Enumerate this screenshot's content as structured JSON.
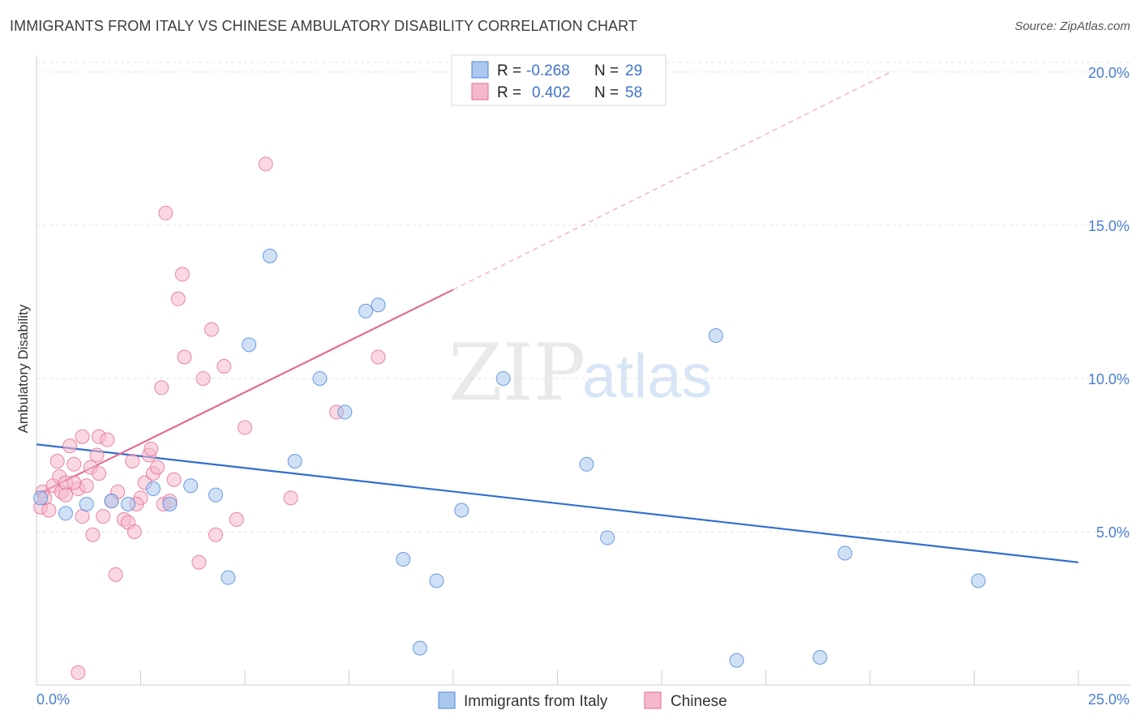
{
  "header": {
    "title": "IMMIGRANTS FROM ITALY VS CHINESE AMBULATORY DISABILITY CORRELATION CHART",
    "source": "Source: ZipAtlas.com"
  },
  "watermark": {
    "zip": "ZIP",
    "atlas": "atlas"
  },
  "legend_box": {
    "rows": [
      {
        "r_label": "R =",
        "r_value": "-0.268",
        "n_label": "N =",
        "n_value": "29",
        "color": "#aac8ee"
      },
      {
        "r_label": "R =",
        "r_value": "0.402",
        "n_label": "N =",
        "n_value": "58",
        "color": "#f5b8cb"
      }
    ]
  },
  "bottom_legend": {
    "items": [
      {
        "label": "Immigrants from Italy",
        "color": "#aac8ee"
      },
      {
        "label": "Chinese",
        "color": "#f5b8cb"
      }
    ]
  },
  "chart_data": {
    "type": "scatter",
    "title": "IMMIGRANTS FROM ITALY VS CHINESE AMBULATORY DISABILITY CORRELATION CHART",
    "xlabel": "",
    "ylabel": "Ambulatory Disability",
    "xlim": [
      0,
      25
    ],
    "ylim": [
      0,
      20.5
    ],
    "x_tick_labels": [
      "0.0%",
      "25.0%"
    ],
    "y_ticks": [
      5,
      10,
      15,
      20
    ],
    "y_tick_labels": [
      "5.0%",
      "10.0%",
      "15.0%",
      "20.0%"
    ],
    "grid": true,
    "legend_position": "top-center",
    "series": [
      {
        "name": "Immigrants from Italy",
        "color": "#4a86d8",
        "fill": "#aac8ee",
        "points": [
          [
            0.1,
            6.1
          ],
          [
            0.7,
            5.6
          ],
          [
            1.2,
            5.9
          ],
          [
            1.8,
            6.0
          ],
          [
            2.2,
            5.9
          ],
          [
            2.8,
            6.4
          ],
          [
            3.2,
            5.9
          ],
          [
            3.7,
            6.5
          ],
          [
            4.3,
            6.2
          ],
          [
            4.6,
            3.5
          ],
          [
            5.1,
            11.1
          ],
          [
            5.6,
            14.0
          ],
          [
            6.2,
            7.3
          ],
          [
            6.8,
            10.0
          ],
          [
            7.4,
            8.9
          ],
          [
            7.9,
            12.2
          ],
          [
            8.2,
            12.4
          ],
          [
            8.8,
            4.1
          ],
          [
            9.2,
            1.2
          ],
          [
            9.6,
            3.4
          ],
          [
            10.2,
            5.7
          ],
          [
            11.2,
            10.0
          ],
          [
            13.2,
            7.2
          ],
          [
            13.7,
            4.8
          ],
          [
            16.3,
            11.4
          ],
          [
            16.8,
            0.8
          ],
          [
            18.8,
            0.9
          ],
          [
            19.4,
            4.3
          ],
          [
            22.6,
            3.4
          ]
        ],
        "trend": {
          "x_start": 0,
          "y_start": 7.85,
          "x_end": 25,
          "y_end": 4.0
        }
      },
      {
        "name": "Chinese",
        "color": "#e36a95",
        "fill": "#f5b8cb",
        "points": [
          [
            0.1,
            5.8
          ],
          [
            0.15,
            6.3
          ],
          [
            0.2,
            6.1
          ],
          [
            0.3,
            5.7
          ],
          [
            0.4,
            6.5
          ],
          [
            0.5,
            7.3
          ],
          [
            0.55,
            6.8
          ],
          [
            0.6,
            6.3
          ],
          [
            0.7,
            6.6
          ],
          [
            0.8,
            7.8
          ],
          [
            0.9,
            7.2
          ],
          [
            1.0,
            6.4
          ],
          [
            1.1,
            8.1
          ],
          [
            1.2,
            6.5
          ],
          [
            1.3,
            7.1
          ],
          [
            1.35,
            4.9
          ],
          [
            1.45,
            7.5
          ],
          [
            1.5,
            8.1
          ],
          [
            1.6,
            5.5
          ],
          [
            1.7,
            8.0
          ],
          [
            1.8,
            6.0
          ],
          [
            1.9,
            3.6
          ],
          [
            1.95,
            6.3
          ],
          [
            2.1,
            5.4
          ],
          [
            2.2,
            5.3
          ],
          [
            2.3,
            7.3
          ],
          [
            2.35,
            5.0
          ],
          [
            2.5,
            6.1
          ],
          [
            2.6,
            6.6
          ],
          [
            2.7,
            7.5
          ],
          [
            2.75,
            7.7
          ],
          [
            2.8,
            6.9
          ],
          [
            2.9,
            7.1
          ],
          [
            3.0,
            9.7
          ],
          [
            3.05,
            5.9
          ],
          [
            3.1,
            15.4
          ],
          [
            3.2,
            6.0
          ],
          [
            3.3,
            6.7
          ],
          [
            3.4,
            12.6
          ],
          [
            3.5,
            13.4
          ],
          [
            3.55,
            10.7
          ],
          [
            3.9,
            4.0
          ],
          [
            4.0,
            10.0
          ],
          [
            4.2,
            11.6
          ],
          [
            4.3,
            4.9
          ],
          [
            4.5,
            10.4
          ],
          [
            4.8,
            5.4
          ],
          [
            5.0,
            8.4
          ],
          [
            5.5,
            17.0
          ],
          [
            6.1,
            6.1
          ],
          [
            7.2,
            8.9
          ],
          [
            8.2,
            10.7
          ],
          [
            1.0,
            0.4
          ],
          [
            0.9,
            6.6
          ],
          [
            1.1,
            5.5
          ],
          [
            0.7,
            6.2
          ],
          [
            1.5,
            6.9
          ],
          [
            2.4,
            5.9
          ]
        ],
        "trend": {
          "x_start": 0,
          "y_start": 6.2,
          "x_end": 10,
          "y_end": 12.9
        },
        "trend_extension": {
          "x_start": 10,
          "y_start": 12.9,
          "x_end": 20.5,
          "y_end": 20.0
        }
      }
    ]
  }
}
